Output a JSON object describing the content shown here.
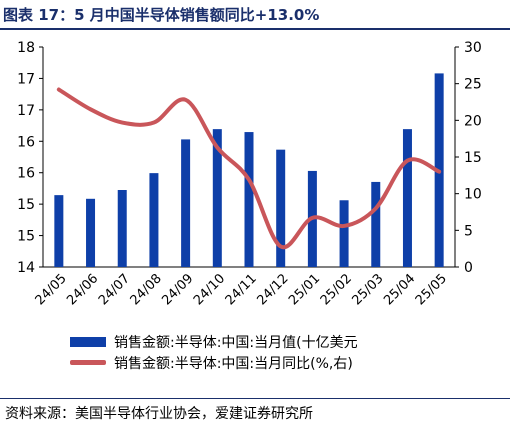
{
  "title": "图表 17：5 月中国半导体销售额同比+13.0%",
  "source": "资料来源：美国半导体行业协会，爱建证券研究所",
  "colors": {
    "bar": "#0e3fa8",
    "line": "#c9565a",
    "title": "#1a2f6b"
  },
  "chart_data": {
    "type": "bar",
    "categories": [
      "24/05",
      "24/06",
      "24/07",
      "24/08",
      "24/09",
      "24/10",
      "24/11",
      "24/12",
      "25/01",
      "25/02",
      "25/03",
      "25/04",
      "25/05"
    ],
    "left_axis": {
      "ticks": [
        "18",
        "17",
        "17",
        "16",
        "16",
        "15",
        "15",
        "14"
      ],
      "ylim": [
        0,
        30
      ]
    },
    "right_axis": {
      "ticks": [
        "30",
        "25",
        "20",
        "15",
        "10",
        "5",
        "0"
      ],
      "ylim": [
        0,
        30
      ]
    },
    "series": [
      {
        "name": "销售金额:半导体:中国:当月值(十亿美元",
        "type": "bar",
        "axis": "left",
        "values": [
          9.8,
          9.3,
          10.5,
          12.8,
          17.4,
          18.8,
          18.4,
          16.0,
          13.1,
          9.1,
          11.6,
          18.8,
          26.4
        ]
      },
      {
        "name": "销售金额:半导体:中国:当月同比(%,右)",
        "type": "line",
        "axis": "right",
        "values": [
          24.2,
          21.5,
          19.7,
          19.7,
          22.8,
          16.3,
          11.9,
          2.8,
          6.7,
          5.6,
          8.0,
          14.5,
          13.0
        ]
      }
    ],
    "grid": false,
    "legend": "bottom"
  }
}
